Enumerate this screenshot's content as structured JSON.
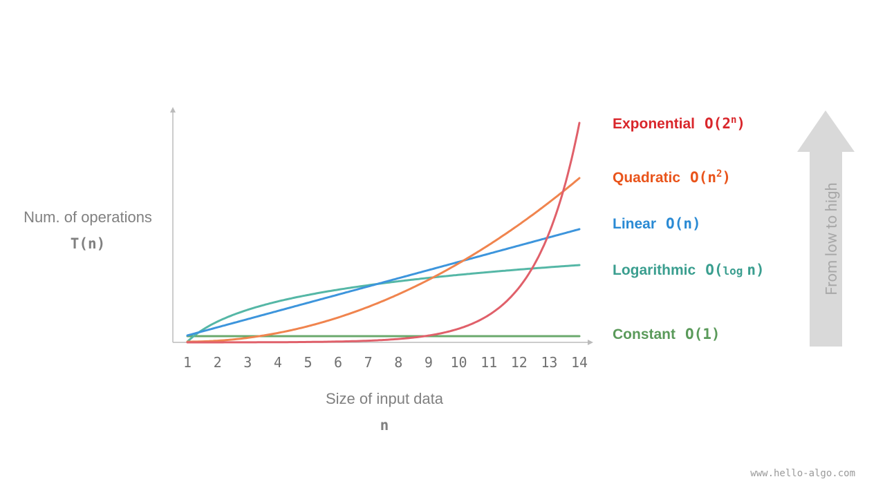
{
  "y_axis": {
    "label": "Num. of operations",
    "symbol": "T(n)"
  },
  "x_axis": {
    "label": "Size of input data",
    "symbol": "n",
    "ticks": [
      "1",
      "2",
      "3",
      "4",
      "5",
      "6",
      "7",
      "8",
      "9",
      "10",
      "11",
      "12",
      "13",
      "14"
    ]
  },
  "labels": [
    {
      "name": "Exponential",
      "formula": [
        "O(2",
        "n",
        ")"
      ]
    },
    {
      "name": "Quadratic",
      "formula": [
        "O(n",
        "2",
        ")"
      ]
    },
    {
      "name": "Linear",
      "formula": [
        "O(n)"
      ]
    },
    {
      "name": "Logarithmic",
      "formula": [
        "O(",
        "log",
        "n)"
      ]
    },
    {
      "name": "Constant",
      "formula": [
        "O(1)"
      ]
    }
  ],
  "arrow_text": "From  low to high",
  "watermark": "www.hello-algo.com"
}
